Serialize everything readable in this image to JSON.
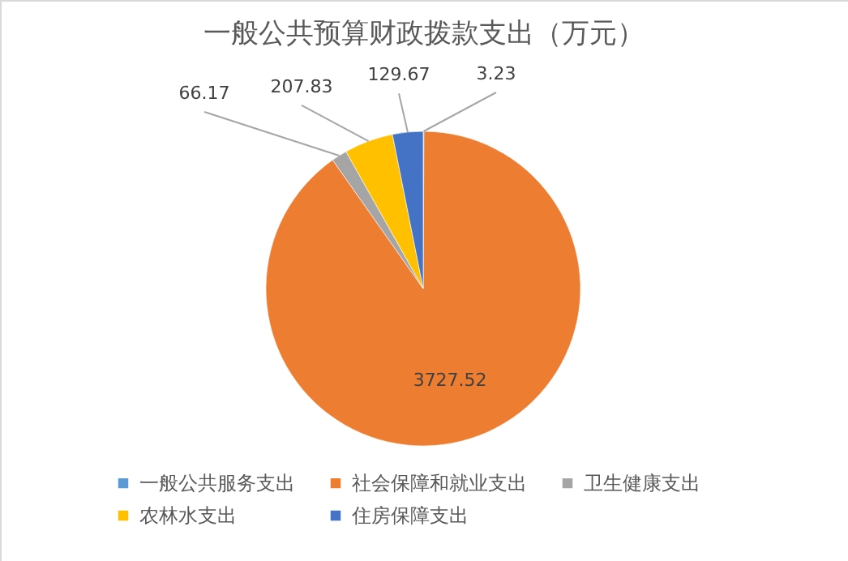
{
  "chart_data": {
    "type": "pie",
    "title": "一般公共预算财政拨款支出（万元）",
    "categories": [
      "一般公共服务支出",
      "社会保障和就业支出",
      "卫生健康支出",
      "农林水支出",
      "住房保障支出"
    ],
    "values": [
      3.23,
      3727.52,
      66.17,
      207.83,
      129.67
    ],
    "colors": [
      "#5b9bd5",
      "#ed7d31",
      "#a5a5a5",
      "#ffc000",
      "#4472c4"
    ],
    "data_labels": true,
    "legend": "bottom"
  }
}
